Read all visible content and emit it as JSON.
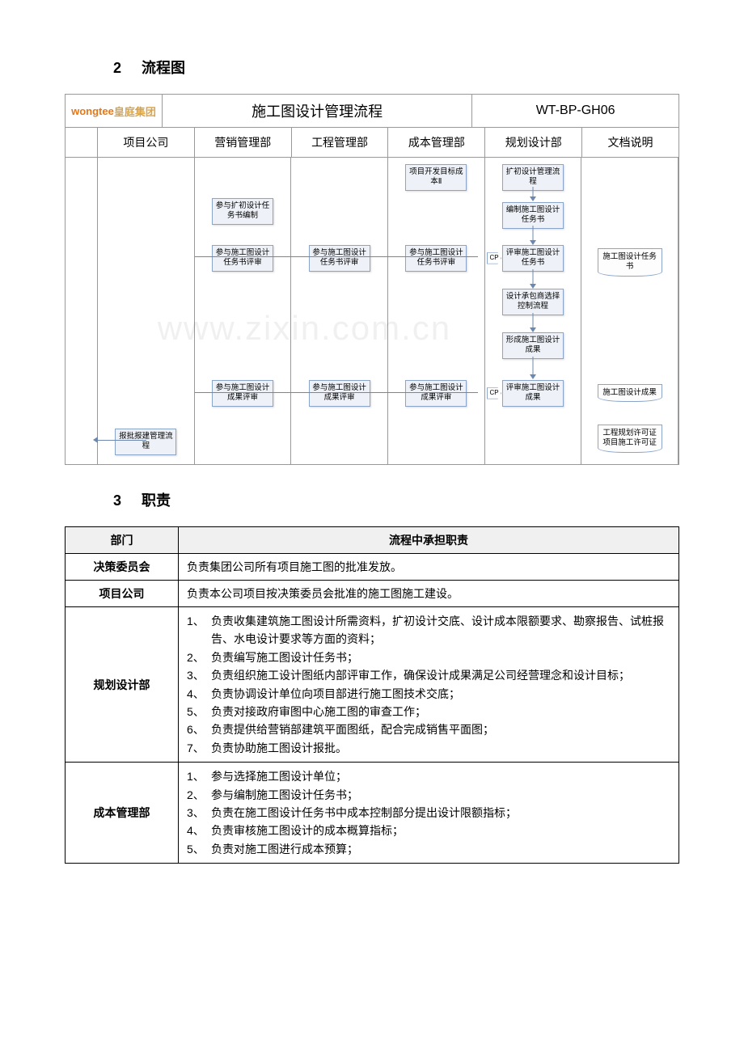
{
  "section2": {
    "num": "2",
    "title": "流程图"
  },
  "section3": {
    "num": "3",
    "title": "职责"
  },
  "flowchart": {
    "logo_text": "wongtee",
    "logo_suffix": "皇庭集团",
    "title": "施工图设计管理流程",
    "code": "WT-BP-GH06",
    "columns": [
      "项目公司",
      "营销管理部",
      "工程管理部",
      "成本管理部",
      "规划设计部",
      "文档说明"
    ],
    "boxes": {
      "cost_target": "项目开发目标成本Ⅱ",
      "expand_design": "扩初设计管理流程",
      "compile_task": "编制施工图设计任务书",
      "join_expand_compile": "参与扩初设计任务书编制",
      "join_review1_sale": "参与施工图设计任务书评审",
      "join_review1_eng": "参与施工图设计任务书评审",
      "join_review1_cost": "参与施工图设计任务书评审",
      "review_task": "评审施工图设计任务书",
      "doc1": "施工图设计任务书",
      "contractor_select": "设计承包商选择控制流程",
      "form_results": "形成施工图设计成果",
      "join_review2_sale": "参与施工图设计成果评审",
      "join_review2_eng": "参与施工图设计成果评审",
      "join_review2_cost": "参与施工图设计成果评审",
      "review_results": "评审施工图设计成果",
      "doc2": "施工图设计成果",
      "approval_flow": "报批报建管理流程",
      "doc3": "工程规划许可证\n项目施工许可证",
      "cp": "CP"
    },
    "colors": {
      "box_border": "#8aa5c9",
      "box_fill": "#eef2f8",
      "line": "#6c88b0",
      "table_border": "#999999"
    }
  },
  "watermark": "www.zixin.com.cn",
  "resp_table": {
    "headers": [
      "部门",
      "流程中承担职责"
    ],
    "rows": [
      {
        "dept": "决策委员会",
        "items": [
          "负责集团公司所有项目施工图的批准发放。"
        ]
      },
      {
        "dept": "项目公司",
        "items": [
          "负责本公司项目按决策委员会批准的施工图施工建设。"
        ]
      },
      {
        "dept": "规划设计部",
        "items": [
          "1、 负责收集建筑施工图设计所需资料，扩初设计交底、设计成本限额要求、勘察报告、试桩报告、水电设计要求等方面的资料；",
          "2、 负责编写施工图设计任务书；",
          "3、 负责组织施工设计图纸内部评审工作，确保设计成果满足公司经营理念和设计目标；",
          "4、 负责协调设计单位向项目部进行施工图技术交底；",
          "5、 负责对接政府审图中心施工图的审查工作；",
          "6、 负责提供给营销部建筑平面图纸，配合完成销售平面图；",
          "7、 负责协助施工图设计报批。"
        ]
      },
      {
        "dept": "成本管理部",
        "items": [
          "1、 参与选择施工图设计单位；",
          "2、 参与编制施工图设计任务书；",
          "3、 负责在施工图设计任务书中成本控制部分提出设计限额指标；",
          "4、 负责审核施工图设计的成本概算指标；",
          "5、 负责对施工图进行成本预算；"
        ]
      }
    ]
  }
}
